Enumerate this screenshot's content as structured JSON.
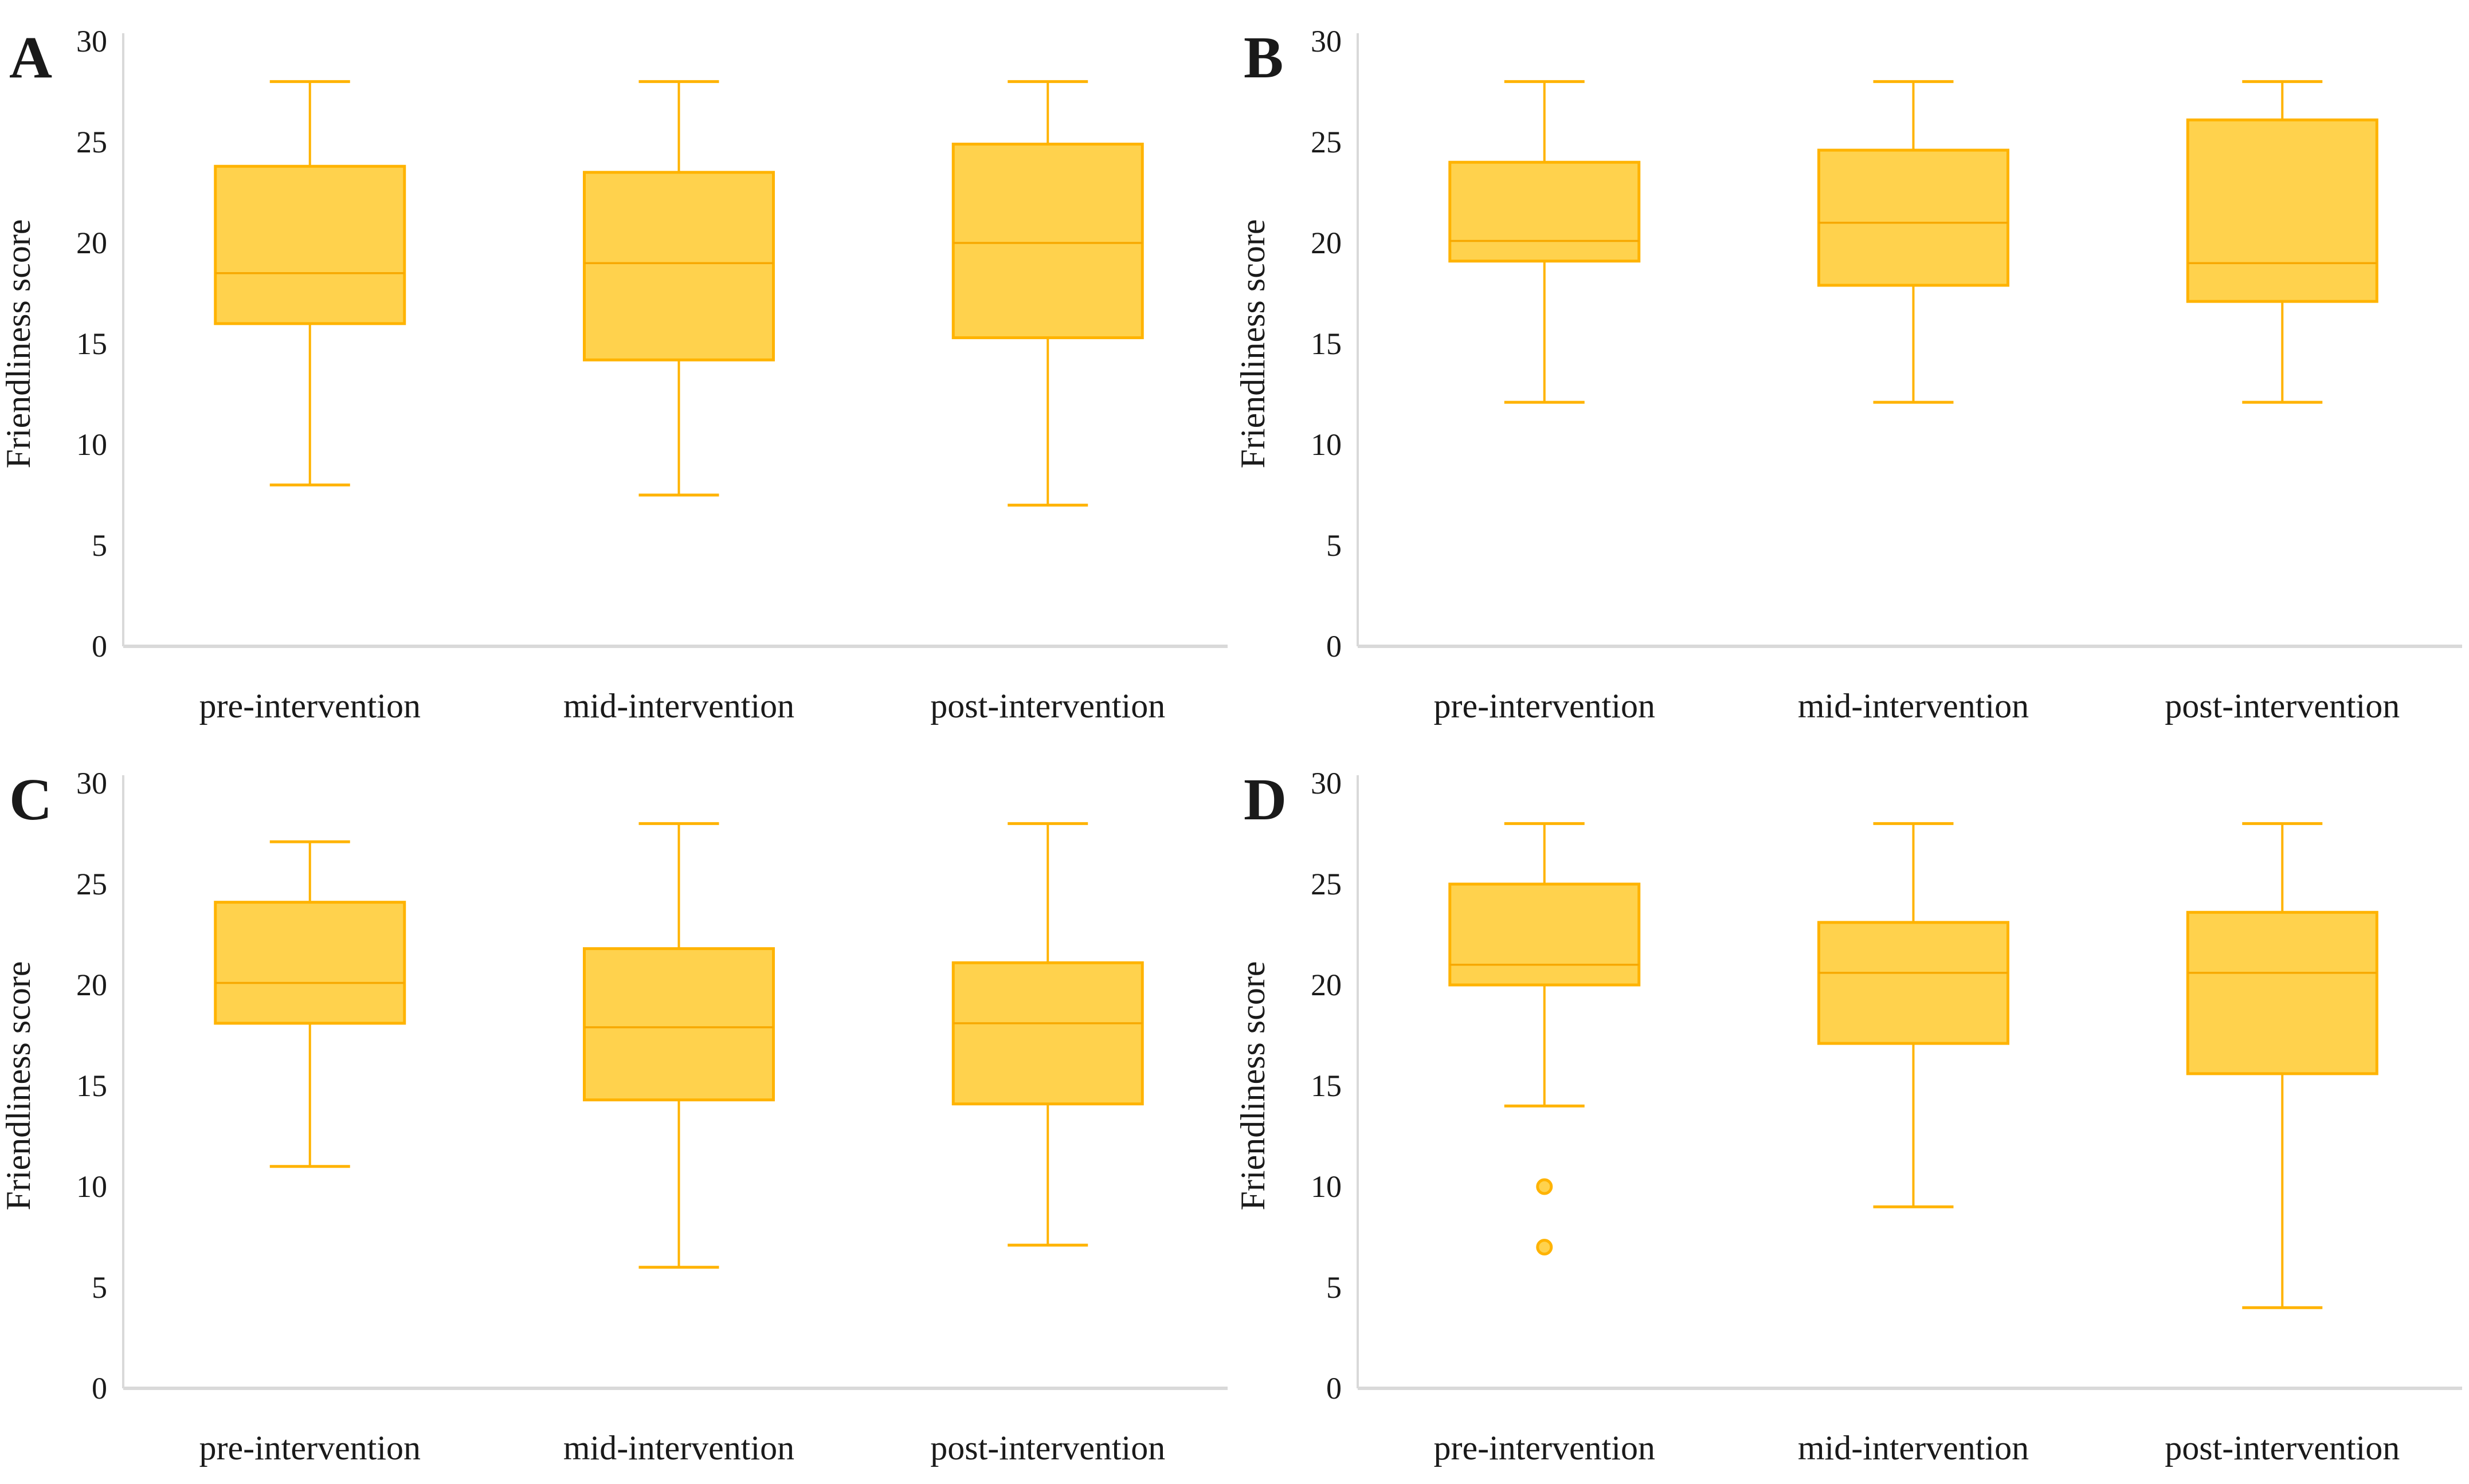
{
  "figure": {
    "kind": "2x2-boxplot-figure",
    "background": "#FFFFFF"
  },
  "colors": {
    "box_fill": "#FFD24D",
    "box_stroke": "#FFB300",
    "median_stroke": "#F7A800",
    "whisker_stroke": "#FFB300",
    "outlier_fill": "#FFD24D",
    "outlier_stroke": "#FFB300",
    "axis_line": "#D9D9D9",
    "text": "#1A1A1A"
  },
  "chart_data": [
    {
      "type": "boxplot",
      "panel_label": "A",
      "ylabel": "Friendliness score",
      "ylim": [
        0,
        30
      ],
      "yticks": [
        0,
        5,
        10,
        15,
        20,
        25,
        30
      ],
      "grid": false,
      "legend": "none",
      "categories": [
        "pre-intervention",
        "mid-intervention",
        "post-intervention"
      ],
      "series": [
        {
          "category": "pre-intervention",
          "min": 8,
          "q1": 16,
          "median": 18.5,
          "q3": 23.8,
          "max": 28,
          "outliers": []
        },
        {
          "category": "mid-intervention",
          "min": 7.5,
          "q1": 14.2,
          "median": 19,
          "q3": 23.5,
          "max": 28,
          "outliers": []
        },
        {
          "category": "post-intervention",
          "min": 7,
          "q1": 15.3,
          "median": 20,
          "q3": 24.9,
          "max": 28,
          "outliers": []
        }
      ]
    },
    {
      "type": "boxplot",
      "panel_label": "B",
      "ylabel": "Friendliness score",
      "ylim": [
        0,
        30
      ],
      "yticks": [
        0,
        5,
        10,
        15,
        20,
        25,
        30
      ],
      "grid": false,
      "legend": "none",
      "categories": [
        "pre-intervention",
        "mid-intervention",
        "post-intervention"
      ],
      "series": [
        {
          "category": "pre-intervention",
          "min": 12.1,
          "q1": 19.1,
          "median": 20.1,
          "q3": 24,
          "max": 28,
          "outliers": []
        },
        {
          "category": "mid-intervention",
          "min": 12.1,
          "q1": 17.9,
          "median": 21,
          "q3": 24.6,
          "max": 28,
          "outliers": []
        },
        {
          "category": "post-intervention",
          "min": 12.1,
          "q1": 17.1,
          "median": 19,
          "q3": 26.1,
          "max": 28,
          "outliers": []
        }
      ]
    },
    {
      "type": "boxplot",
      "panel_label": "C",
      "ylabel": "Friendliness score",
      "ylim": [
        0,
        30
      ],
      "yticks": [
        0,
        5,
        10,
        15,
        20,
        25,
        30
      ],
      "grid": false,
      "legend": "none",
      "categories": [
        "pre-intervention",
        "mid-intervention",
        "post-intervention"
      ],
      "series": [
        {
          "category": "pre-intervention",
          "min": 11,
          "q1": 18.1,
          "median": 20.1,
          "q3": 24.1,
          "max": 27.1,
          "outliers": []
        },
        {
          "category": "mid-intervention",
          "min": 6,
          "q1": 14.3,
          "median": 17.9,
          "q3": 21.8,
          "max": 28,
          "outliers": []
        },
        {
          "category": "post-intervention",
          "min": 7.1,
          "q1": 14.1,
          "median": 18.1,
          "q3": 21.1,
          "max": 28,
          "outliers": []
        }
      ]
    },
    {
      "type": "boxplot",
      "panel_label": "D",
      "ylabel": "Friendliness score",
      "ylim": [
        0,
        30
      ],
      "yticks": [
        0,
        5,
        10,
        15,
        20,
        25,
        30
      ],
      "grid": false,
      "legend": "none",
      "categories": [
        "pre-intervention",
        "mid-intervention",
        "post-intervention"
      ],
      "series": [
        {
          "category": "pre-intervention",
          "min": 14,
          "q1": 20,
          "median": 21,
          "q3": 25,
          "max": 28,
          "outliers": [
            10,
            7
          ]
        },
        {
          "category": "mid-intervention",
          "min": 9,
          "q1": 17.1,
          "median": 20.6,
          "q3": 23.1,
          "max": 28,
          "outliers": []
        },
        {
          "category": "post-intervention",
          "min": 4,
          "q1": 15.6,
          "median": 20.6,
          "q3": 23.6,
          "max": 28,
          "outliers": []
        }
      ]
    }
  ]
}
